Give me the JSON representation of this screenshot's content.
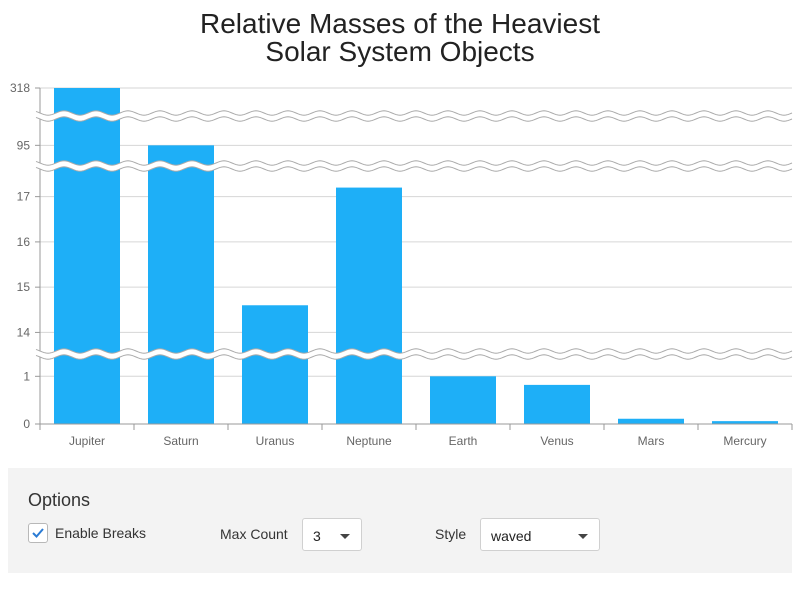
{
  "chart_data": {
    "type": "bar",
    "title_lines": [
      "Relative Masses of the Heaviest",
      "Solar System Objects"
    ],
    "categories": [
      "Jupiter",
      "Saturn",
      "Uranus",
      "Neptune",
      "Earth",
      "Venus",
      "Mars",
      "Mercury"
    ],
    "values": [
      318,
      95,
      14.6,
      17.2,
      1,
      0.82,
      0.11,
      0.06
    ],
    "y_ticks": [
      0,
      1,
      14,
      15,
      16,
      17,
      95,
      318
    ],
    "axis_breaks": [
      [
        1.3,
        13.7
      ],
      [
        17.5,
        94.5
      ],
      [
        96,
        317
      ]
    ],
    "bar_color": "#1eaff7",
    "grid": true,
    "legend": "none"
  },
  "options": {
    "heading": "Options",
    "enable_breaks_label": "Enable Breaks",
    "enable_breaks_checked": true,
    "max_count_label": "Max Count",
    "max_count_value": "3",
    "style_label": "Style",
    "style_value": "waved"
  }
}
